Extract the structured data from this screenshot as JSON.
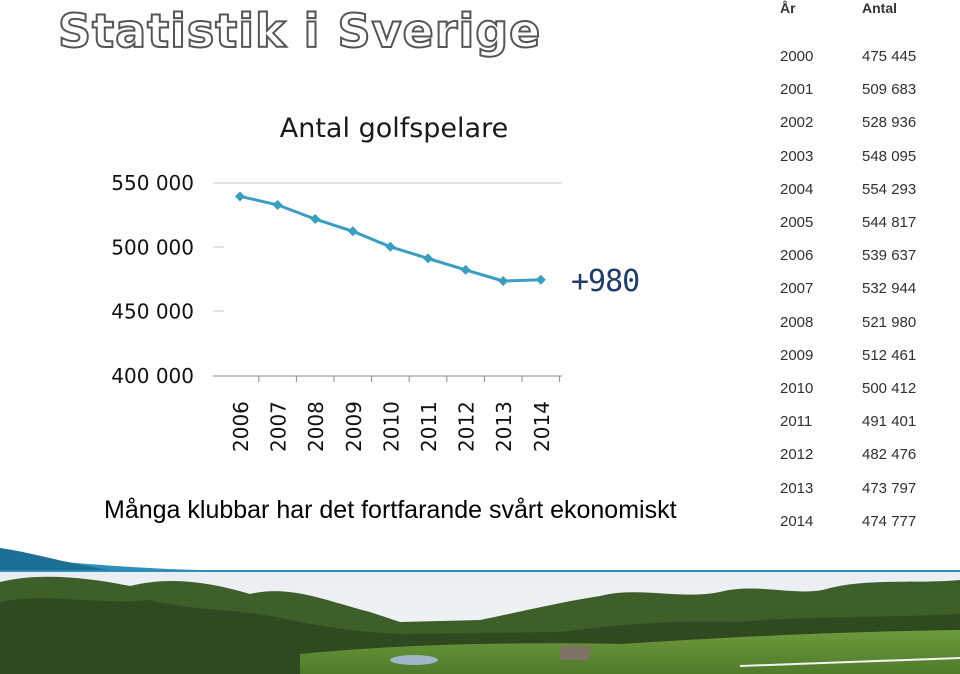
{
  "slide": {
    "title": "Statistik i Sverige",
    "subtitle": "Många klubbar har det fortfarande svårt ekonomiskt",
    "annotation": "+980"
  },
  "chart_data": {
    "type": "line",
    "title": "Antal golfspelare",
    "categories": [
      "2006",
      "2007",
      "2008",
      "2009",
      "2010",
      "2011",
      "2012",
      "2013",
      "2014"
    ],
    "values": [
      539637,
      532944,
      521980,
      512461,
      500412,
      491401,
      482476,
      473797,
      474777
    ],
    "ylim": [
      400000,
      550000
    ],
    "yticks": [
      400000,
      450000,
      500000,
      550000
    ],
    "ytick_labels": [
      "400 000",
      "450 000",
      "500 000",
      "550 000"
    ],
    "grid": false,
    "line_color": "#3a9ec2",
    "annotation": "+980"
  },
  "table": {
    "headers": [
      "År",
      "Antal"
    ],
    "rows": [
      [
        "2000",
        "475 445"
      ],
      [
        "2001",
        "509 683"
      ],
      [
        "2002",
        "528 936"
      ],
      [
        "2003",
        "548 095"
      ],
      [
        "2004",
        "554 293"
      ],
      [
        "2005",
        "544 817"
      ],
      [
        "2006",
        "539 637"
      ],
      [
        "2007",
        "532 944"
      ],
      [
        "2008",
        "521 980"
      ],
      [
        "2009",
        "512 461"
      ],
      [
        "2010",
        "500 412"
      ],
      [
        "2011",
        "491 401"
      ],
      [
        "2012",
        "482 476"
      ],
      [
        "2013",
        "473 797"
      ],
      [
        "2014",
        "474 777"
      ]
    ]
  },
  "colors": {
    "line": "#3a9ec2",
    "accent": "#2f8fb8",
    "annotation": "#1f3d6b"
  }
}
